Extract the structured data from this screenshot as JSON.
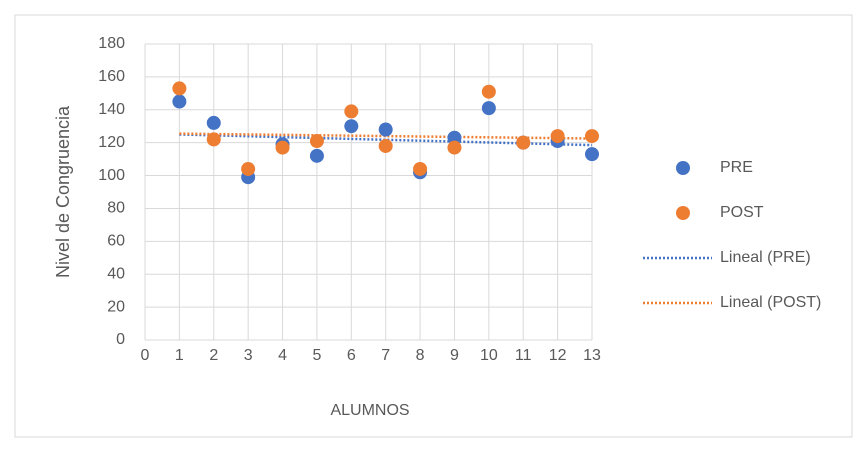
{
  "chart_data": {
    "type": "scatter",
    "xlabel": "ALUMNOS",
    "ylabel": "Nivel de Congruencia",
    "xlim": [
      0,
      13
    ],
    "xticks": [
      0,
      1,
      2,
      3,
      4,
      5,
      6,
      7,
      8,
      9,
      10,
      11,
      12,
      13
    ],
    "ylim": [
      0,
      180
    ],
    "yticks": [
      0,
      20,
      40,
      60,
      80,
      100,
      120,
      140,
      160,
      180
    ],
    "grid": true,
    "legend": "right",
    "series": [
      {
        "name": "PRE",
        "color": "#4472c4",
        "x": [
          1,
          2,
          3,
          4,
          5,
          6,
          7,
          8,
          9,
          10,
          11,
          12,
          13
        ],
        "values": [
          145,
          132,
          99,
          119,
          112,
          130,
          128,
          102,
          123,
          141,
          120,
          121,
          113
        ]
      },
      {
        "name": "POST",
        "color": "#ed7d31",
        "x": [
          1,
          2,
          3,
          4,
          5,
          6,
          7,
          8,
          9,
          10,
          11,
          12,
          13
        ],
        "values": [
          153,
          122,
          104,
          117,
          121,
          139,
          118,
          104,
          117,
          151,
          120,
          124,
          124
        ]
      }
    ],
    "trendlines": [
      {
        "name": "Lineal (PRE)",
        "color": "#4472c4",
        "x": [
          1,
          13
        ],
        "values": [
          125,
          118.5
        ]
      },
      {
        "name": "Lineal (POST)",
        "color": "#ed7d31",
        "x": [
          1,
          13
        ],
        "values": [
          125.5,
          122.5
        ]
      }
    ]
  }
}
